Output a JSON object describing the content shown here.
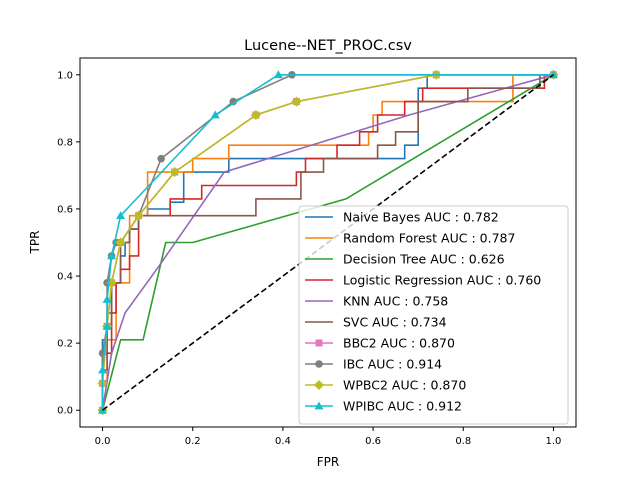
{
  "chart_data": {
    "type": "line",
    "title": "Lucene--NET_PROC.csv",
    "xlabel": "FPR",
    "ylabel": "TPR",
    "xlim": [
      -0.05,
      1.05
    ],
    "ylim": [
      -0.05,
      1.05
    ],
    "xticks": [
      0.0,
      0.2,
      0.4,
      0.6,
      0.8,
      1.0
    ],
    "yticks": [
      0.0,
      0.2,
      0.4,
      0.6,
      0.8,
      1.0
    ],
    "xtick_labels": [
      "0.0",
      "0.2",
      "0.4",
      "0.6",
      "0.8",
      "1.0"
    ],
    "ytick_labels": [
      "0.0",
      "0.2",
      "0.4",
      "0.6",
      "0.8",
      "1.0"
    ],
    "grid": false,
    "legend_position": "lower-right",
    "diagonal": {
      "x": [
        0,
        1
      ],
      "y": [
        0,
        1
      ],
      "color": "#000000",
      "style": "dashed"
    },
    "series": [
      {
        "name": "Naive Bayes AUC : 0.782",
        "color": "#1f77b4",
        "marker": "none",
        "step": true,
        "x": [
          0.0,
          0.0,
          0.01,
          0.01,
          0.02,
          0.02,
          0.04,
          0.04,
          0.05,
          0.05,
          0.06,
          0.06,
          0.08,
          0.08,
          0.1,
          0.1,
          0.15,
          0.15,
          0.18,
          0.18,
          0.28,
          0.28,
          0.67,
          0.67,
          0.7,
          0.7,
          0.72,
          0.72,
          1.0
        ],
        "y": [
          0.0,
          0.21,
          0.21,
          0.29,
          0.29,
          0.38,
          0.38,
          0.46,
          0.46,
          0.5,
          0.5,
          0.54,
          0.54,
          0.58,
          0.58,
          0.6,
          0.6,
          0.62,
          0.62,
          0.71,
          0.71,
          0.75,
          0.75,
          0.79,
          0.79,
          0.96,
          0.96,
          1.0,
          1.0
        ]
      },
      {
        "name": "Random Forest AUC : 0.787",
        "color": "#ff7f0e",
        "marker": "none",
        "step": true,
        "x": [
          0.0,
          0.0,
          0.01,
          0.01,
          0.03,
          0.03,
          0.06,
          0.06,
          0.1,
          0.1,
          0.2,
          0.2,
          0.28,
          0.28,
          0.59,
          0.59,
          0.6,
          0.6,
          0.62,
          0.62,
          0.65,
          0.65,
          0.91,
          0.91,
          1.0
        ],
        "y": [
          0.0,
          0.08,
          0.08,
          0.21,
          0.21,
          0.38,
          0.38,
          0.58,
          0.58,
          0.71,
          0.71,
          0.75,
          0.75,
          0.79,
          0.79,
          0.83,
          0.83,
          0.88,
          0.88,
          0.92,
          0.92,
          0.92,
          0.92,
          1.0,
          1.0
        ]
      },
      {
        "name": "Decision Tree AUC : 0.626",
        "color": "#2ca02c",
        "marker": "none",
        "step": false,
        "x": [
          0.0,
          0.04,
          0.09,
          0.14,
          0.2,
          0.54,
          1.0
        ],
        "y": [
          0.0,
          0.21,
          0.21,
          0.5,
          0.5,
          0.63,
          1.0
        ]
      },
      {
        "name": "Logistic Regression AUC : 0.760",
        "color": "#d62728",
        "marker": "none",
        "step": true,
        "x": [
          0.0,
          0.0,
          0.02,
          0.02,
          0.03,
          0.03,
          0.04,
          0.04,
          0.06,
          0.06,
          0.08,
          0.08,
          0.15,
          0.15,
          0.22,
          0.22,
          0.43,
          0.43,
          0.45,
          0.45,
          0.52,
          0.52,
          0.57,
          0.57,
          0.61,
          0.61,
          0.67,
          0.67,
          0.71,
          0.71,
          0.73,
          0.73,
          0.98,
          0.98,
          1.0
        ],
        "y": [
          0.0,
          0.17,
          0.17,
          0.29,
          0.29,
          0.38,
          0.38,
          0.42,
          0.42,
          0.46,
          0.46,
          0.58,
          0.58,
          0.63,
          0.63,
          0.67,
          0.67,
          0.71,
          0.71,
          0.75,
          0.75,
          0.79,
          0.79,
          0.83,
          0.83,
          0.88,
          0.88,
          0.92,
          0.92,
          0.96,
          0.96,
          0.96,
          0.96,
          1.0,
          1.0
        ]
      },
      {
        "name": "KNN AUC : 0.758",
        "color": "#9467bd",
        "marker": "none",
        "step": false,
        "x": [
          0.0,
          0.02,
          0.05,
          0.12,
          0.27,
          0.68,
          1.0
        ],
        "y": [
          0.0,
          0.17,
          0.29,
          0.42,
          0.71,
          0.88,
          1.0
        ]
      },
      {
        "name": "SVC AUC : 0.734",
        "color": "#8c564b",
        "marker": "none",
        "step": true,
        "x": [
          0.0,
          0.0,
          0.01,
          0.01,
          0.02,
          0.02,
          0.04,
          0.04,
          0.06,
          0.06,
          0.08,
          0.08,
          0.12,
          0.12,
          0.23,
          0.23,
          0.34,
          0.34,
          0.4,
          0.4,
          0.44,
          0.44,
          0.49,
          0.49,
          0.61,
          0.61,
          0.65,
          0.65,
          0.7,
          0.7,
          0.81,
          0.81,
          0.97,
          0.97,
          1.0
        ],
        "y": [
          0.0,
          0.12,
          0.12,
          0.25,
          0.25,
          0.38,
          0.38,
          0.5,
          0.5,
          0.54,
          0.54,
          0.58,
          0.58,
          0.58,
          0.58,
          0.58,
          0.58,
          0.63,
          0.63,
          0.63,
          0.63,
          0.71,
          0.71,
          0.75,
          0.75,
          0.79,
          0.79,
          0.83,
          0.83,
          0.92,
          0.92,
          0.96,
          0.96,
          1.0,
          1.0
        ]
      },
      {
        "name": "BBC2 AUC : 0.870",
        "color": "#e377c2",
        "marker": "square",
        "step": false,
        "x": [
          0.0,
          0.0,
          0.01,
          0.02,
          0.04,
          0.08,
          0.16,
          0.34,
          0.43,
          0.74,
          1.0
        ],
        "y": [
          0.0,
          0.08,
          0.25,
          0.38,
          0.5,
          0.58,
          0.71,
          0.88,
          0.92,
          1.0,
          1.0
        ]
      },
      {
        "name": "IBC AUC : 0.914",
        "color": "#7f7f7f",
        "marker": "circle",
        "step": false,
        "x": [
          0.0,
          0.0,
          0.01,
          0.01,
          0.02,
          0.03,
          0.04,
          0.08,
          0.13,
          0.29,
          0.42,
          1.0
        ],
        "y": [
          0.0,
          0.17,
          0.25,
          0.38,
          0.46,
          0.5,
          0.5,
          0.58,
          0.75,
          0.92,
          1.0,
          1.0
        ]
      },
      {
        "name": "WPBC2 AUC : 0.870",
        "color": "#bcbd22",
        "marker": "diamond",
        "step": false,
        "x": [
          0.0,
          0.0,
          0.01,
          0.02,
          0.04,
          0.08,
          0.16,
          0.34,
          0.43,
          0.74,
          1.0
        ],
        "y": [
          0.0,
          0.08,
          0.25,
          0.38,
          0.5,
          0.58,
          0.71,
          0.88,
          0.92,
          1.0,
          1.0
        ]
      },
      {
        "name": "WPIBC AUC : 0.912",
        "color": "#17becf",
        "marker": "triangle",
        "step": false,
        "x": [
          0.0,
          0.0,
          0.01,
          0.01,
          0.02,
          0.04,
          0.25,
          0.39,
          1.0
        ],
        "y": [
          0.0,
          0.12,
          0.25,
          0.33,
          0.46,
          0.58,
          0.88,
          1.0,
          1.0
        ]
      }
    ]
  }
}
